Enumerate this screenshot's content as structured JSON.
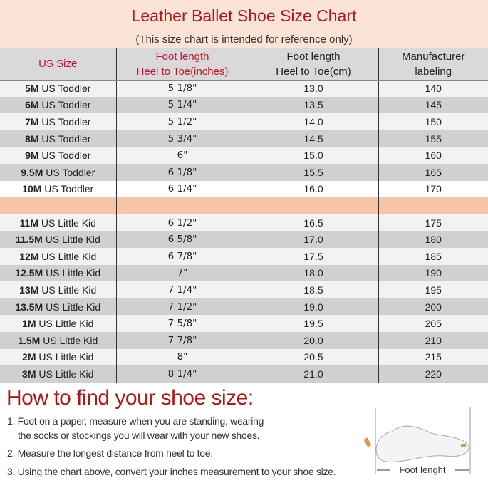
{
  "title": "Leather Ballet Shoe Size Chart",
  "subtitle": "(This size chart is intended for reference only)",
  "headers": [
    [
      "US Size",
      ""
    ],
    [
      "Foot length",
      "Heel to Toe(inches)"
    ],
    [
      "Foot length",
      "Heel to Toe(cm)"
    ],
    [
      "Manufacturer",
      "labeling"
    ]
  ],
  "header_colors": {
    "red": "#c8102e"
  },
  "rows": [
    {
      "size": "5M",
      "cat": "US Toddler",
      "inch": "5 1/8\"",
      "cm": "13.0",
      "label": "140"
    },
    {
      "size": "6M",
      "cat": "US Toddler",
      "inch": "5 1/4\"",
      "cm": "13.5",
      "label": "145"
    },
    {
      "size": "7M",
      "cat": "US Toddler",
      "inch": "5 1/2\"",
      "cm": "14.0",
      "label": "150"
    },
    {
      "size": "8M",
      "cat": "US Toddler",
      "inch": "5 3/4\"",
      "cm": "14.5",
      "label": "155"
    },
    {
      "size": "9M",
      "cat": "US Toddler",
      "inch": "6\"",
      "cm": "15.0",
      "label": "160"
    },
    {
      "size": "9.5M",
      "cat": "US Toddler",
      "inch": "6 1/8\"",
      "cm": "15.5",
      "label": "165"
    },
    {
      "size": "10M",
      "cat": "US Toddler",
      "inch": "6 1/4\"",
      "cm": "16.0",
      "label": "170"
    },
    {
      "size": "11M",
      "cat": "US Little Kid",
      "inch": "6 1/2\"",
      "cm": "16.5",
      "label": "175"
    },
    {
      "size": "11.5M",
      "cat": "US Little Kid",
      "inch": "6 5/8\"",
      "cm": "17.0",
      "label": "180"
    },
    {
      "size": "12M",
      "cat": "US Little Kid",
      "inch": "6 7/8\"",
      "cm": "17.5",
      "label": "185"
    },
    {
      "size": "12.5M",
      "cat": "US Little Kid",
      "inch": "7\"",
      "cm": "18.0",
      "label": "190"
    },
    {
      "size": "13M",
      "cat": "US Little Kid",
      "inch": "7 1/4\"",
      "cm": "18.5",
      "label": "195"
    },
    {
      "size": "13.5M",
      "cat": "US Little Kid",
      "inch": "7 1/2\"",
      "cm": "19.0",
      "label": "200"
    },
    {
      "size": "1M",
      "cat": "US Little Kid",
      "inch": "7 5/8\"",
      "cm": "19.5",
      "label": "205"
    },
    {
      "size": "1.5M",
      "cat": "US Little Kid",
      "inch": "7 7/8\"",
      "cm": "20.0",
      "label": "210"
    },
    {
      "size": "2M",
      "cat": "US Little Kid",
      "inch": "8\"",
      "cm": "20.5",
      "label": "215"
    },
    {
      "size": "3M",
      "cat": "US Little Kid",
      "inch": "8 1/4\"",
      "cm": "21.0",
      "label": "220"
    }
  ],
  "how": {
    "heading": "How to find your shoe size:",
    "steps": [
      "1. Foot on a paper, measure when you are standing, wearing",
      "the socks or stockings you will wear with your new shoes.",
      "2. Measure the longest distance from heel to toe.",
      "3. Using the chart above, convert your inches measurement to your shoe size."
    ],
    "illustration_label": "Foot lenght"
  }
}
